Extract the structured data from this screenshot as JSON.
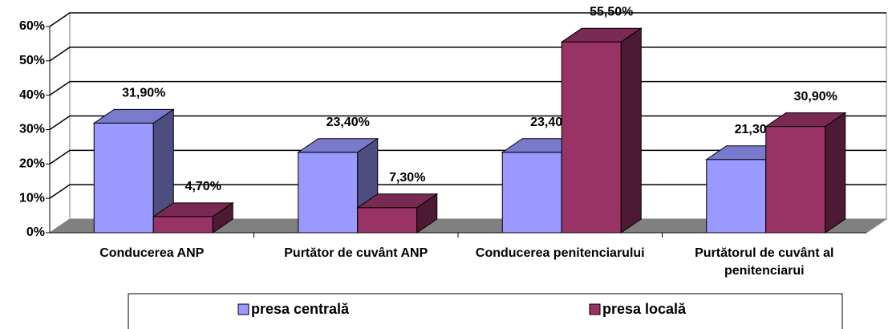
{
  "chart_data": {
    "type": "bar3d",
    "categories": [
      "Conducerea ANP",
      "Purtător de cuvânt ANP",
      "Conducerea penitenciarului",
      "Purtătorul de cuvânt al penitenciarui"
    ],
    "series": [
      {
        "name": "presa centrală",
        "color": "#9999ff",
        "values": [
          31.9,
          23.4,
          23.4,
          21.3
        ],
        "value_labels": [
          "31,90%",
          "23,40%",
          "23,40%",
          "21,30%"
        ]
      },
      {
        "name": "presa locală",
        "color": "#993366",
        "values": [
          4.7,
          7.3,
          55.5,
          30.9
        ],
        "value_labels": [
          "4,70%",
          "7,30%",
          "55,50%",
          "30,90%"
        ]
      }
    ],
    "ylim": [
      0,
      60
    ],
    "yticks": [
      {
        "value": 0,
        "label": "0%"
      },
      {
        "value": 10,
        "label": "10%"
      },
      {
        "value": 20,
        "label": "20%"
      },
      {
        "value": 30,
        "label": "30%"
      },
      {
        "value": 40,
        "label": "40%"
      },
      {
        "value": 50,
        "label": "50%"
      },
      {
        "value": 60,
        "label": "60%"
      }
    ],
    "grid": true,
    "legend": "bottom"
  }
}
